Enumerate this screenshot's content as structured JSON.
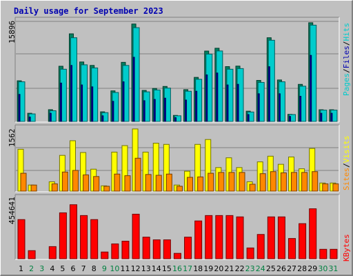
{
  "title": "Daily usage for September 2023",
  "colors": {
    "background": "#c0c0c0",
    "hits": "#00cccc",
    "files": "#0000b0",
    "pages": "#00cccc",
    "visits": "#ffff00",
    "sites": "#ff8800",
    "kbytes": "#ff0000",
    "weekend_label": "#008040",
    "weekday_label": "#000000"
  },
  "legend": {
    "pages": "Pages",
    "files": "Files",
    "hits": "Hits",
    "visits": "Visits",
    "sites": "Sites",
    "kbytes": "KBytes",
    "sep": "/"
  },
  "chart_data": {
    "type": "bar",
    "categories": [
      "1",
      "2",
      "3",
      "4",
      "5",
      "6",
      "7",
      "8",
      "9",
      "10",
      "11",
      "12",
      "13",
      "14",
      "15",
      "16",
      "17",
      "18",
      "19",
      "20",
      "21",
      "22",
      "23",
      "24",
      "25",
      "26",
      "27",
      "28",
      "29",
      "30",
      "31"
    ],
    "weekend_days": [
      "2",
      "3",
      "9",
      "10",
      "16",
      "17",
      "23",
      "24",
      "30",
      "31"
    ],
    "panels": [
      {
        "name": "hits-files-pages",
        "ymax_label": "15896",
        "ylim": [
          0,
          15896
        ],
        "series": [
          {
            "name": "Hits",
            "values": [
              6460,
              1300,
              null,
              1870,
              8770,
              13920,
              9450,
              8900,
              1530,
              4860,
              9390,
              15480,
              4930,
              5240,
              5560,
              960,
              5050,
              7000,
              11180,
              11630,
              8710,
              8790,
              1630,
              6520,
              13300,
              6590,
              1130,
              5890,
              15680,
              1860,
              1860
            ]
          },
          {
            "name": "Files",
            "values": [
              4300,
              700,
              null,
              1300,
              6100,
              8900,
              5800,
              5500,
              900,
              3200,
              6300,
              10200,
              3300,
              3500,
              3700,
              600,
              3400,
              4800,
              7400,
              7700,
              5800,
              5900,
              1100,
              4400,
              8700,
              4400,
              800,
              4000,
              10500,
              1300,
              1300
            ]
          },
          {
            "name": "Pages",
            "values": [
              6300,
              1200,
              null,
              1700,
              8300,
              13300,
              9000,
              8500,
              1400,
              4600,
              8900,
              14900,
              4700,
              5000,
              5300,
              900,
              4800,
              6700,
              10700,
              11200,
              8300,
              8400,
              1500,
              6200,
              12900,
              6300,
              1100,
              5600,
              15300,
              1800,
              1800
            ]
          }
        ]
      },
      {
        "name": "visits-sites",
        "ymax_label": "1562",
        "ylim": [
          0,
          1562
        ],
        "series": [
          {
            "name": "Visits",
            "values": [
              1030,
              150,
              null,
              230,
              880,
              1240,
              950,
              540,
              130,
              960,
              1120,
              1530,
              960,
              1180,
              1150,
              150,
              490,
              1150,
              1270,
              580,
              820,
              580,
              230,
              720,
              860,
              660,
              840,
              550,
              1050,
              200,
              200
            ]
          },
          {
            "name": "Sites",
            "values": [
              440,
              150,
              null,
              180,
              470,
              510,
              400,
              360,
              120,
              420,
              380,
              810,
              410,
              390,
              420,
              120,
              340,
              350,
              440,
              460,
              460,
              460,
              170,
              430,
              480,
              450,
              460,
              460,
              480,
              180,
              180
            ]
          }
        ]
      },
      {
        "name": "kbytes",
        "ymax_label": "454641",
        "ylim": [
          0,
          454641
        ],
        "series": [
          {
            "name": "KBytes",
            "values": [
              290000,
              60000,
              null,
              90000,
              340000,
              400000,
              320000,
              290000,
              50000,
              110000,
              130000,
              330000,
              160000,
              140000,
              140000,
              40000,
              160000,
              280000,
              320000,
              320000,
              320000,
              310000,
              80000,
              180000,
              310000,
              310000,
              150000,
              260000,
              370000,
              70000,
              70000
            ]
          }
        ]
      }
    ]
  }
}
